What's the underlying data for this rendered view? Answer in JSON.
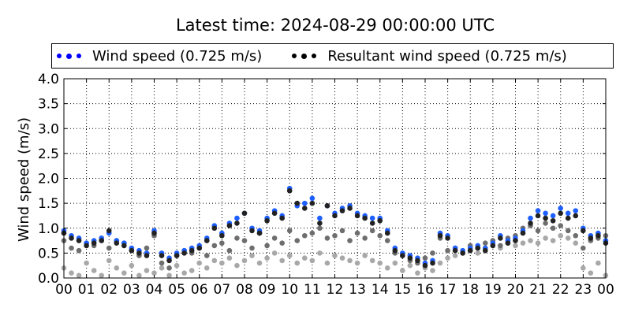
{
  "chart_data": {
    "type": "scatter",
    "title": "Latest time: 2024-08-29 00:00:00 UTC",
    "ylabel": "Wind speed (m/s)",
    "xlabel": "",
    "ylim": [
      0,
      4.0
    ],
    "xlim": [
      0,
      24
    ],
    "x_unit": "hour of day (UTC)",
    "x_step_hours": 0.3333,
    "yticks": [
      "0.0",
      "0.5",
      "1.0",
      "1.5",
      "2.0",
      "2.5",
      "3.0",
      "3.5",
      "4.0"
    ],
    "xticks": [
      "00",
      "01",
      "02",
      "03",
      "04",
      "05",
      "06",
      "07",
      "08",
      "09",
      "10",
      "11",
      "12",
      "13",
      "14",
      "15",
      "16",
      "17",
      "18",
      "19",
      "20",
      "21",
      "22",
      "23",
      "00"
    ],
    "grid": true,
    "legend_placement": "top",
    "legend": [
      {
        "label": "Wind speed (0.725 m/s)",
        "color": "#0000ff"
      },
      {
        "label": "Resultant wind speed (0.725 m/s)",
        "color": "#000000"
      }
    ],
    "series": [
      {
        "key": "older_light",
        "color": "#a8a8a8",
        "values": [
          0.2,
          0.1,
          0.05,
          0.3,
          0.15,
          0.05,
          0.35,
          0.2,
          0.1,
          0.25,
          0.05,
          0.15,
          0.1,
          0.2,
          0.05,
          0.25,
          0.1,
          0.15,
          0.3,
          0.2,
          0.35,
          0.3,
          0.4,
          0.25,
          0.35,
          0.45,
          0.3,
          0.4,
          0.5,
          0.35,
          0.45,
          0.3,
          0.4,
          0.35,
          0.5,
          0.3,
          0.45,
          0.4,
          0.35,
          0.3,
          0.45,
          0.35,
          0.3,
          0.2,
          0.3,
          0.15,
          0.25,
          0.1,
          0.2,
          0.15,
          0.3,
          0.4,
          0.45,
          0.5,
          0.55,
          0.5,
          0.6,
          0.65,
          0.6,
          0.7,
          0.65,
          0.7,
          0.75,
          0.7,
          0.8,
          0.75,
          0.85,
          0.8,
          0.7,
          0.2,
          0.1,
          0.3,
          0.05
        ]
      },
      {
        "key": "older_mid",
        "color": "#6e6e6e",
        "values": [
          0.75,
          0.6,
          0.55,
          0.7,
          0.65,
          0.8,
          0.6,
          0.75,
          0.7,
          0.55,
          0.45,
          0.6,
          0.85,
          0.3,
          0.2,
          0.45,
          0.55,
          0.5,
          0.6,
          0.45,
          0.65,
          0.7,
          0.55,
          0.8,
          0.75,
          0.6,
          0.9,
          0.65,
          0.8,
          0.7,
          0.95,
          0.75,
          0.85,
          0.9,
          1.0,
          0.8,
          0.85,
          0.95,
          0.75,
          0.9,
          0.8,
          0.95,
          0.85,
          0.75,
          0.5,
          0.45,
          0.35,
          0.3,
          0.4,
          0.5,
          0.8,
          0.55,
          0.6,
          0.5,
          0.65,
          0.6,
          0.7,
          0.75,
          0.65,
          0.8,
          0.85,
          1.0,
          1.05,
          0.95,
          1.1,
          1.0,
          1.05,
          0.95,
          0.85,
          0.6,
          0.75,
          0.8,
          0.85
        ]
      },
      {
        "key": "wind_speed",
        "label": "Wind speed (0.725 m/s)",
        "color": "#1e5fff",
        "values": [
          0.95,
          0.85,
          0.8,
          0.7,
          0.75,
          0.8,
          0.9,
          0.75,
          0.7,
          0.6,
          0.55,
          0.5,
          0.95,
          0.5,
          0.4,
          0.5,
          0.55,
          0.6,
          0.65,
          0.8,
          1.05,
          0.9,
          1.1,
          1.2,
          1.3,
          1.0,
          0.95,
          1.2,
          1.35,
          1.25,
          1.8,
          1.45,
          1.5,
          1.6,
          1.2,
          1.45,
          1.3,
          1.4,
          1.45,
          1.3,
          1.25,
          1.2,
          1.2,
          0.95,
          0.6,
          0.5,
          0.45,
          0.4,
          0.3,
          0.35,
          0.9,
          0.85,
          0.6,
          0.55,
          0.6,
          0.65,
          0.6,
          0.7,
          0.85,
          0.75,
          0.8,
          0.95,
          1.2,
          1.35,
          1.3,
          1.25,
          1.4,
          1.3,
          1.35,
          1.0,
          0.85,
          0.9,
          0.75
        ]
      },
      {
        "key": "resultant_wind_speed",
        "label": "Resultant wind speed (0.725 m/s)",
        "color": "#222222",
        "values": [
          0.9,
          0.8,
          0.75,
          0.65,
          0.7,
          0.75,
          0.95,
          0.7,
          0.65,
          0.55,
          0.5,
          0.45,
          0.9,
          0.45,
          0.35,
          0.45,
          0.5,
          0.55,
          0.6,
          0.75,
          1.0,
          0.85,
          1.05,
          1.1,
          1.3,
          0.95,
          0.9,
          1.15,
          1.3,
          1.2,
          1.75,
          1.5,
          1.4,
          1.5,
          1.1,
          1.45,
          1.25,
          1.35,
          1.4,
          1.25,
          1.2,
          1.1,
          1.15,
          0.9,
          0.55,
          0.45,
          0.4,
          0.35,
          0.25,
          0.3,
          0.85,
          0.8,
          0.55,
          0.5,
          0.55,
          0.6,
          0.55,
          0.65,
          0.8,
          0.7,
          0.75,
          0.9,
          1.1,
          1.25,
          1.2,
          1.15,
          1.3,
          1.2,
          1.25,
          0.95,
          0.8,
          0.85,
          0.7
        ]
      }
    ]
  }
}
